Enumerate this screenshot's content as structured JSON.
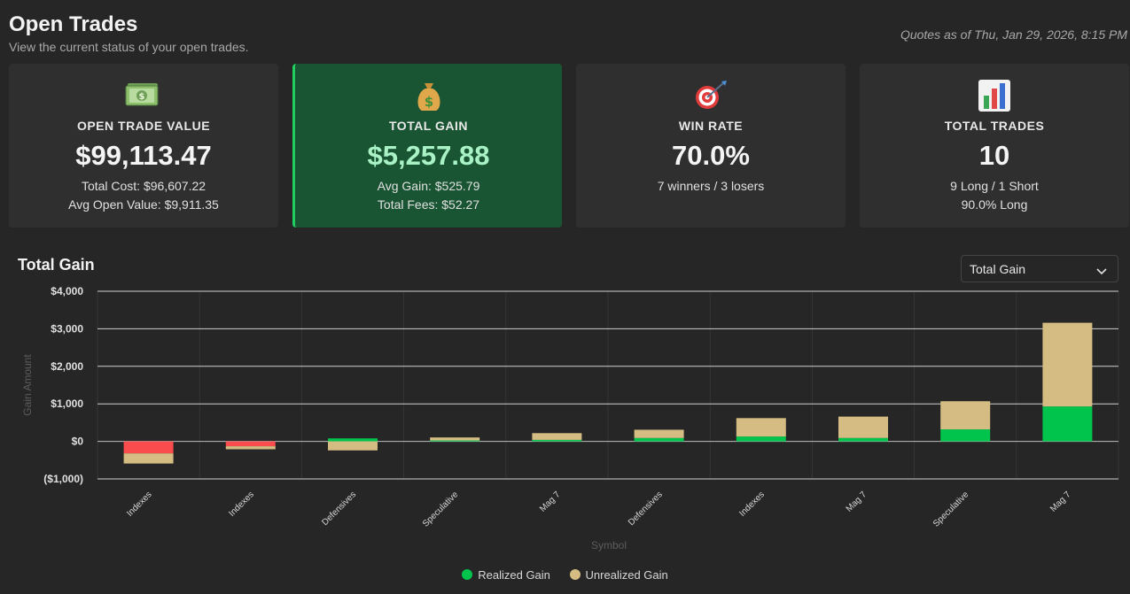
{
  "header": {
    "title": "Open Trades",
    "subtitle": "View the current status of your open trades.",
    "quotes": "Quotes as of Thu, Jan 29, 2026, 8:15 PM"
  },
  "cards": [
    {
      "icon": "money-bills-icon",
      "label": "OPEN TRADE VALUE",
      "value": "$99,113.47",
      "sub1": "Total Cost: $96,607.22",
      "sub2": "Avg Open Value: $9,911.35"
    },
    {
      "icon": "money-bag-icon",
      "label": "TOTAL GAIN",
      "value": "$5,257.88",
      "sub1": "Avg Gain: $525.79",
      "sub2": "Total Fees: $52.27"
    },
    {
      "icon": "target-icon",
      "label": "WIN RATE",
      "value": "70.0%",
      "sub1": "7 winners / 3 losers"
    },
    {
      "icon": "bar-chart-icon",
      "label": "TOTAL TRADES",
      "value": "10",
      "sub1": "9 Long / 1 Short",
      "sub2": "90.0% Long"
    }
  ],
  "chart_section": {
    "title": "Total Gain",
    "select_value": "Total Gain"
  },
  "colors": {
    "realized": "#00c44b",
    "unrealized": "#d4bc82",
    "loss": "#fa4c4c",
    "card_accent": "#1fd060"
  },
  "chart_data": {
    "type": "bar",
    "stacked": true,
    "title": "Total Gain",
    "xlabel": "Symbol",
    "ylabel": "Gain Amount",
    "ylim": [
      -1000,
      4000
    ],
    "yticks": [
      4000,
      3000,
      2000,
      1000,
      0,
      -1000
    ],
    "ytick_labels": [
      "$4,000",
      "$3,000",
      "$2,000",
      "$1,000",
      "$0",
      "($1,000)"
    ],
    "categories": [
      "Indexes",
      "Indexes",
      "Defensives",
      "Speculative",
      "Mag 7",
      "Defensives",
      "Indexes",
      "Mag 7",
      "Speculative",
      "Mag 7"
    ],
    "series": [
      {
        "name": "Realized Gain",
        "values": [
          -320,
          -130,
          80,
          25,
          40,
          90,
          130,
          90,
          320,
          930
        ]
      },
      {
        "name": "Unrealized Gain",
        "values": [
          -270,
          -80,
          -240,
          80,
          180,
          220,
          490,
          570,
          750,
          2230
        ]
      }
    ],
    "legend": [
      "Realized Gain",
      "Unrealized Gain"
    ],
    "legend_position": "bottom"
  }
}
